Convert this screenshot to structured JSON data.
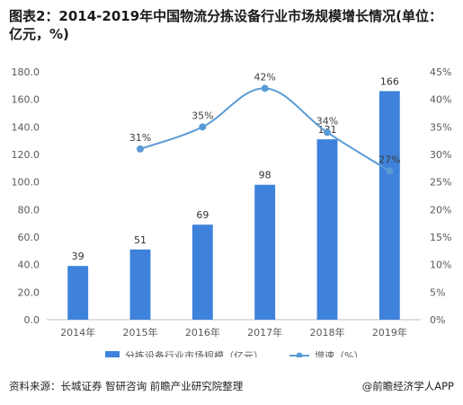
{
  "header": {
    "title": "图表2：2014-2019年中国物流分拣设备行业市场规模增长情况(单位：亿元，%)"
  },
  "footer": {
    "source": "资料来源：长城证券 智研咨询 前瞻产业研究院整理",
    "brand": "@前瞻经济学人APP"
  },
  "colors": {
    "bar": "#3E82DB",
    "line": "#5B9BD5",
    "axis": "#BFBFBF",
    "grid": "#D9D9D9",
    "text": "#595959"
  },
  "chart_data": {
    "type": "bar",
    "title": "图表2：2014-2019年中国物流分拣设备行业市场规模增长情况(单位：亿元，%)",
    "categories": [
      "2014年",
      "2015年",
      "2016年",
      "2017年",
      "2018年",
      "2019年"
    ],
    "series": [
      {
        "name": "分拣设备行业市场规模（亿元）",
        "type": "bar",
        "axis": "left",
        "values": [
          39,
          51,
          69,
          98,
          131,
          166
        ],
        "labels": [
          "39",
          "51",
          "69",
          "98",
          "131",
          "166"
        ]
      },
      {
        "name": "增速（%）",
        "type": "line",
        "axis": "right",
        "values": [
          null,
          31,
          35,
          42,
          34,
          27
        ],
        "labels": [
          "",
          "31%",
          "35%",
          "42%",
          "34%",
          "27%"
        ]
      }
    ],
    "yleft": {
      "lim": [
        0,
        180
      ],
      "ticks": [
        0,
        20,
        40,
        60,
        80,
        100,
        120,
        140,
        160,
        180
      ],
      "tick_labels": [
        "0.0",
        "20.0",
        "40.0",
        "60.0",
        "80.0",
        "100.0",
        "120.0",
        "140.0",
        "160.0",
        "180.0"
      ]
    },
    "yright": {
      "lim": [
        0,
        45
      ],
      "ticks": [
        0,
        5,
        10,
        15,
        20,
        25,
        30,
        35,
        40,
        45
      ],
      "tick_labels": [
        "0%",
        "5%",
        "10%",
        "15%",
        "20%",
        "25%",
        "30%",
        "35%",
        "40%",
        "45%"
      ]
    },
    "grid": false,
    "legend": "bottom"
  }
}
